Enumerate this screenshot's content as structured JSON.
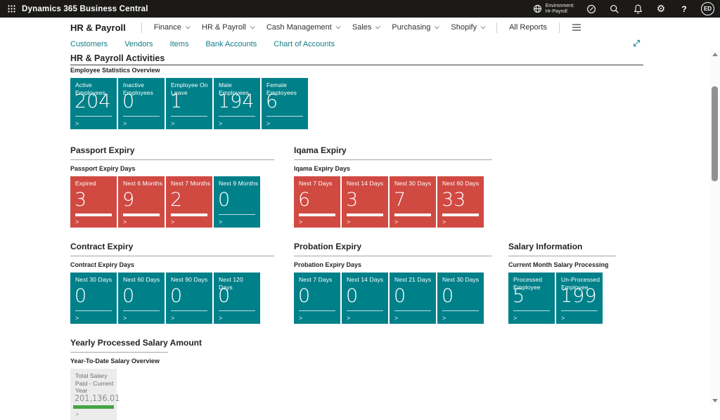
{
  "topbar": {
    "app_title": "Dynamics 365 Business Central",
    "environment": {
      "label": "Environment:",
      "name": "Hr-Payroll"
    },
    "avatar_initials": "ED"
  },
  "nav": {
    "role_title": "HR & Payroll",
    "menus": [
      "Finance",
      "HR & Payroll",
      "Cash Management",
      "Sales",
      "Purchasing",
      "Shopify"
    ],
    "all_reports_label": "All Reports"
  },
  "subnav": {
    "items": [
      "Customers",
      "Vendors",
      "Items",
      "Bank Accounts",
      "Chart of Accounts"
    ]
  },
  "page": {
    "title": "HR & Payroll Activities"
  },
  "colors": {
    "teal": "#008089",
    "red": "#d04a42",
    "green": "#44a546",
    "gray_tile": "#ececec"
  },
  "sections": [
    {
      "id": "employee-statistics",
      "heading": null,
      "group_label": "Employee Statistics Overview",
      "tiles": [
        {
          "label": "Active Employees",
          "value": "204",
          "color": "teal"
        },
        {
          "label": "Inactive Employees",
          "value": "0",
          "color": "teal"
        },
        {
          "label": "Employee On Leave",
          "value": "1",
          "color": "teal"
        },
        {
          "label": "Male Employees",
          "value": "194",
          "color": "teal"
        },
        {
          "label": "Female Employees",
          "value": "6",
          "color": "teal"
        }
      ]
    },
    {
      "id": "passport-expiry",
      "heading": "Passport Expiry",
      "group_label": "Passport Expiry Days",
      "tiles": [
        {
          "label": "Expired",
          "value": "3",
          "color": "red"
        },
        {
          "label": "Next 6 Months",
          "value": "9",
          "color": "red"
        },
        {
          "label": "Next 7 Months",
          "value": "2",
          "color": "red"
        },
        {
          "label": "Next 9 Months",
          "value": "0",
          "color": "teal"
        }
      ]
    },
    {
      "id": "iqama-expiry",
      "heading": "Iqama Expiry",
      "group_label": "Iqama Expiry Days",
      "tiles": [
        {
          "label": "Next 7 Days",
          "value": "6",
          "color": "red"
        },
        {
          "label": "Next 14 Days",
          "value": "3",
          "color": "red"
        },
        {
          "label": "Next 30 Days",
          "value": "7",
          "color": "red"
        },
        {
          "label": "Next 60 Days",
          "value": "33",
          "color": "red"
        }
      ]
    },
    {
      "id": "contract-expiry",
      "heading": "Contract Expiry",
      "group_label": "Contract Expiry Days",
      "tiles": [
        {
          "label": "Next 30 Days",
          "value": "0",
          "color": "teal"
        },
        {
          "label": "Next 60 Days",
          "value": "0",
          "color": "teal"
        },
        {
          "label": "Next 90 Days",
          "value": "0",
          "color": "teal"
        },
        {
          "label": "Next 120 Days",
          "value": "0",
          "color": "teal"
        }
      ]
    },
    {
      "id": "probation-expiry",
      "heading": "Probation Expiry",
      "group_label": "Probation Expiry Days",
      "tiles": [
        {
          "label": "Next 7 Days",
          "value": "0",
          "color": "teal"
        },
        {
          "label": "Next 14 Days",
          "value": "0",
          "color": "teal"
        },
        {
          "label": "Next 21 Days",
          "value": "0",
          "color": "teal"
        },
        {
          "label": "Next 30 Days",
          "value": "0",
          "color": "teal"
        }
      ]
    },
    {
      "id": "salary-information",
      "heading": "Salary Information",
      "group_label": "Current Month Salary Processing",
      "tiles": [
        {
          "label": "Processed Employee",
          "value": "5",
          "color": "teal"
        },
        {
          "label": "Un-Processed Employee",
          "value": "199",
          "color": "teal"
        }
      ]
    },
    {
      "id": "yearly-processed-salary",
      "heading": "Yearly Processed Salary Amount",
      "group_label": "Year-To-Date Salary Overview",
      "tiles": [
        {
          "label": "Total Salary Paid - Current Year",
          "value": "201,136.01",
          "color": "gray"
        }
      ]
    }
  ]
}
